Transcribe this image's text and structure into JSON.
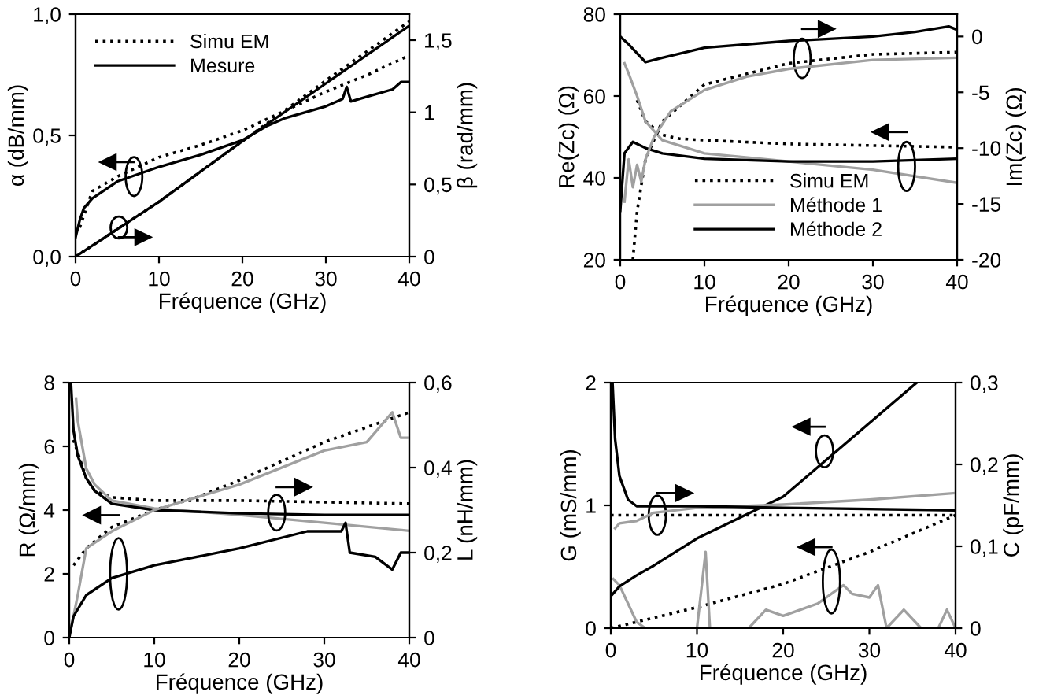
{
  "chart_data": [
    {
      "type": "line",
      "xlabel": "Fréquence (GHz)",
      "ylabel": "α (dB/mm)",
      "y2label": "β (rad/mm)",
      "legend": "top left",
      "xlim": [
        0,
        40
      ],
      "xticks": [
        0,
        10,
        20,
        30,
        40
      ],
      "ylim": [
        0,
        1
      ],
      "yticks": [
        {
          "value": 0,
          "label": "0,0"
        },
        {
          "value": 0.5,
          "label": "0,5"
        },
        {
          "value": 1,
          "label": "1,0"
        }
      ],
      "y2lim": [
        0,
        1.68
      ],
      "y2ticks": [
        0,
        {
          "value": 0.5,
          "label": "0,5"
        },
        1,
        {
          "value": 1.5,
          "label": "1,5"
        }
      ],
      "series": [
        {
          "name": "Simu EM",
          "color": "#000000",
          "line_style": "dotted",
          "x": [
            0.5,
            1,
            2,
            5,
            10,
            15,
            20,
            25,
            30,
            35,
            40
          ],
          "values": [
            0.12,
            0.17,
            0.27,
            0.33,
            0.41,
            0.46,
            0.52,
            0.6,
            0.68,
            0.75,
            0.83
          ]
        },
        {
          "name": "Mesure",
          "color": "#000000",
          "line_style": "solid",
          "x": [
            0,
            0.5,
            1,
            2,
            5,
            10,
            15,
            20,
            22,
            23,
            25,
            30,
            32,
            32.5,
            33,
            35,
            38,
            39,
            40
          ],
          "values": [
            0.08,
            0.15,
            0.2,
            0.24,
            0.31,
            0.37,
            0.42,
            0.48,
            0.52,
            0.54,
            0.57,
            0.62,
            0.65,
            0.7,
            0.64,
            0.66,
            0.69,
            0.72,
            0.72
          ]
        },
        {
          "color": "#000000",
          "line_style": "dotted",
          "axis": "y2",
          "x": [
            0,
            10,
            20,
            30,
            40
          ],
          "values": [
            0,
            0.38,
            0.8,
            1.22,
            1.63
          ]
        },
        {
          "color": "#000000",
          "line_style": "solid",
          "axis": "y2",
          "x": [
            0,
            10,
            20,
            30,
            40
          ],
          "values": [
            0,
            0.38,
            0.8,
            1.2,
            1.6
          ]
        }
      ]
    },
    {
      "type": "line",
      "xlabel": "Fréquence (GHz)",
      "ylabel": "Re(Zc) (Ω)",
      "y2label": "Im(Zc) (Ω)",
      "legend": "bottom",
      "xlim": [
        0,
        40
      ],
      "xticks": [
        0,
        10,
        20,
        30,
        40
      ],
      "ylim": [
        20,
        80
      ],
      "yticks": [
        20,
        40,
        60,
        80
      ],
      "y2lim": [
        -20,
        2
      ],
      "y2ticks": [
        -20,
        -15,
        -10,
        -5,
        0
      ],
      "series": [
        {
          "name": "Simu EM",
          "color": "#000000",
          "line_style": "dotted",
          "x": [
            2,
            3,
            5,
            7,
            10,
            20,
            40
          ],
          "values": [
            59,
            53.8,
            50.5,
            49.6,
            49.2,
            48.3,
            47.5
          ]
        },
        {
          "name": "Méthode 1",
          "color": "#a0a0a0",
          "line_style": "solid",
          "x": [
            0.5,
            1,
            2,
            3,
            5,
            10,
            20,
            30,
            40
          ],
          "values": [
            68,
            65.5,
            60,
            53.8,
            49.2,
            46,
            44,
            42,
            38.8
          ]
        },
        {
          "name": "Méthode 2",
          "color": "#000000",
          "line_style": "solid",
          "x": [
            0,
            0.5,
            1.5,
            3,
            5,
            10,
            20,
            30,
            40
          ],
          "values": [
            32,
            46,
            48.8,
            47.3,
            46,
            44.7,
            44,
            44,
            44.7
          ]
        },
        {
          "color": "#000000",
          "line_style": "dotted",
          "axis": "y2",
          "x": [
            1.5,
            2,
            3,
            5,
            10,
            20,
            30,
            40
          ],
          "values": [
            -20,
            -15.7,
            -11,
            -7.6,
            -4.3,
            -2.4,
            -1.6,
            -1.4
          ]
        },
        {
          "color": "#a0a0a0",
          "line_style": "solid",
          "axis": "y2",
          "x": [
            0.5,
            1,
            1.5,
            2,
            2.5,
            3,
            4,
            6,
            10,
            15,
            20,
            30,
            40
          ],
          "values": [
            -14.8,
            -11,
            -13.5,
            -11.5,
            -13,
            -11,
            -9,
            -6.7,
            -4.8,
            -3.6,
            -2.9,
            -2.1,
            -1.9
          ]
        },
        {
          "color": "#000000",
          "line_style": "solid",
          "axis": "y2",
          "x": [
            0,
            1,
            3,
            5,
            10,
            20,
            30,
            35,
            39,
            40
          ],
          "values": [
            0,
            -0.7,
            -2.3,
            -1.9,
            -1,
            -0.4,
            0,
            0.4,
            0.9,
            0.6
          ]
        }
      ]
    },
    {
      "type": "line",
      "xlabel": "Fréquence (GHz)",
      "ylabel": "R (Ω/mm)",
      "y2label": "L (nH/mm)",
      "xlim": [
        0,
        40
      ],
      "xticks": [
        0,
        10,
        20,
        30,
        40
      ],
      "ylim": [
        0,
        8
      ],
      "yticks": [
        0,
        2,
        4,
        6,
        8
      ],
      "y2lim": [
        0,
        0.6
      ],
      "y2ticks": [
        0,
        {
          "value": 0.2,
          "label": "0,2"
        },
        {
          "value": 0.4,
          "label": "0,4"
        },
        {
          "value": 0.6,
          "label": "0,6"
        }
      ],
      "series": [
        {
          "color": "#000000",
          "line_style": "dotted",
          "x": [
            0.5,
            1,
            2,
            3,
            5,
            10,
            20,
            30,
            40
          ],
          "values": [
            6.2,
            5.8,
            5,
            4.6,
            4.4,
            4.3,
            4.3,
            4.25,
            4.2
          ]
        },
        {
          "color": "#a0a0a0",
          "line_style": "solid",
          "x": [
            0.8,
            1,
            2,
            3,
            5,
            10,
            20,
            30,
            40
          ],
          "values": [
            7.5,
            6.8,
            5.3,
            4.8,
            4.3,
            4.05,
            3.85,
            3.6,
            3.35
          ]
        },
        {
          "color": "#000000",
          "line_style": "solid",
          "x": [
            0.2,
            0.5,
            1,
            2,
            3,
            5,
            10,
            20,
            30,
            40
          ],
          "values": [
            8,
            6.5,
            5.7,
            5,
            4.6,
            4.2,
            4,
            3.9,
            3.85,
            3.85
          ]
        },
        {
          "color": "#000000",
          "line_style": "dotted",
          "axis": "y2",
          "x": [
            0.5,
            2,
            5,
            10,
            15,
            20,
            30,
            40
          ],
          "values": [
            0.17,
            0.21,
            0.26,
            0.3,
            0.33,
            0.37,
            0.46,
            0.53
          ]
        },
        {
          "color": "#a0a0a0",
          "line_style": "solid",
          "axis": "y2",
          "x": [
            0.3,
            1,
            2,
            5,
            10,
            20,
            30,
            35,
            38,
            39,
            40
          ],
          "values": [
            0.03,
            0.1,
            0.21,
            0.25,
            0.3,
            0.36,
            0.44,
            0.46,
            0.53,
            0.47,
            0.47
          ]
        },
        {
          "color": "#000000",
          "line_style": "solid",
          "axis": "y2",
          "x": [
            0,
            0.5,
            2,
            5,
            10,
            20,
            28,
            32,
            32.5,
            33,
            36,
            38,
            39,
            40
          ],
          "values": [
            0,
            0.05,
            0.1,
            0.14,
            0.17,
            0.21,
            0.25,
            0.25,
            0.27,
            0.2,
            0.19,
            0.16,
            0.2,
            0.2
          ]
        }
      ]
    },
    {
      "type": "line",
      "xlabel": "Fréquence (GHz)",
      "ylabel": "G (mS/mm)",
      "y2label": "C (pF/mm)",
      "xlim": [
        0,
        40
      ],
      "xticks": [
        0,
        10,
        20,
        30,
        40
      ],
      "ylim": [
        0,
        2
      ],
      "yticks": [
        0,
        1,
        2
      ],
      "y2lim": [
        0,
        0.3
      ],
      "y2ticks": [
        0,
        {
          "value": 0.1,
          "label": "0,1"
        },
        {
          "value": 0.2,
          "label": "0,2"
        },
        {
          "value": 0.3,
          "label": "0,3"
        }
      ],
      "series": [
        {
          "color": "#000000",
          "line_style": "dotted",
          "x": [
            0,
            10,
            20,
            30,
            40
          ],
          "values": [
            0,
            0.17,
            0.36,
            0.62,
            0.92
          ]
        },
        {
          "color": "#a0a0a0",
          "line_style": "solid",
          "x": [
            0.3,
            1,
            2,
            3,
            4,
            10,
            11,
            11.5,
            16,
            18,
            20,
            22,
            24,
            26,
            27,
            28,
            30,
            31,
            32,
            34,
            36,
            38,
            39,
            40
          ],
          "values": [
            0.4,
            0.35,
            0.2,
            0.05,
            0,
            0,
            0.62,
            0,
            0,
            0.15,
            0.1,
            0.15,
            0.2,
            0.3,
            0.35,
            0.28,
            0.25,
            0.35,
            0,
            0.15,
            0,
            0,
            0.15,
            0
          ]
        },
        {
          "color": "#000000",
          "line_style": "solid",
          "x": [
            0,
            1,
            3,
            5,
            10,
            15,
            20,
            25,
            30,
            35.5
          ],
          "values": [
            0.26,
            0.34,
            0.43,
            0.51,
            0.73,
            0.9,
            1.07,
            1.37,
            1.67,
            2
          ]
        },
        {
          "color": "#000000",
          "line_style": "dotted",
          "axis": "y2",
          "x": [
            0,
            40
          ],
          "values": [
            0.138,
            0.138
          ]
        },
        {
          "color": "#a0a0a0",
          "line_style": "solid",
          "axis": "y2",
          "x": [
            0.5,
            1,
            3,
            5,
            10,
            20,
            30,
            40
          ],
          "values": [
            0.122,
            0.128,
            0.131,
            0.141,
            0.147,
            0.151,
            0.157,
            0.165
          ]
        },
        {
          "color": "#000000",
          "line_style": "solid",
          "axis": "y2",
          "x": [
            0.2,
            0.5,
            1,
            2,
            3,
            10,
            20,
            40
          ],
          "values": [
            0.3,
            0.231,
            0.186,
            0.157,
            0.149,
            0.149,
            0.147,
            0.144
          ]
        }
      ]
    }
  ]
}
